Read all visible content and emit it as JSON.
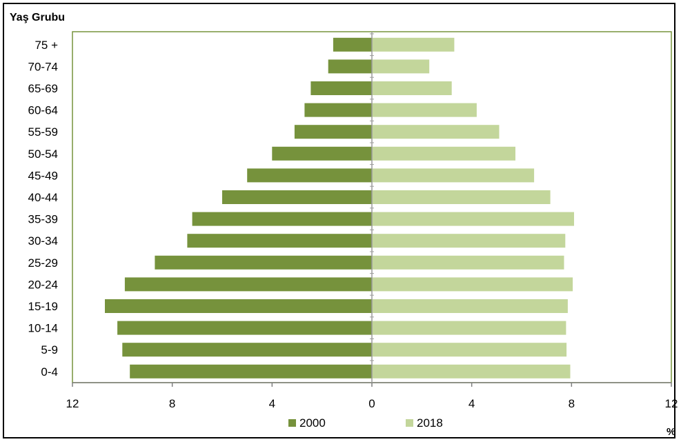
{
  "chart_data": {
    "type": "bar",
    "orientation": "horizontal-pyramid",
    "title": "Yaş Grubu",
    "unit_label": "%",
    "categories": [
      "0-4",
      "5-9",
      "10-14",
      "15-19",
      "20-24",
      "25-29",
      "30-34",
      "35-39",
      "40-44",
      "45-49",
      "50-54",
      "55-59",
      "60-64",
      "65-69",
      "70-74",
      "75 +"
    ],
    "series": [
      {
        "name": "2000",
        "side": "left",
        "color": "#76923c",
        "values": [
          9.7,
          10.0,
          10.2,
          10.7,
          9.9,
          8.7,
          7.4,
          7.2,
          6.0,
          5.0,
          4.0,
          3.1,
          2.7,
          2.45,
          1.75,
          1.55
        ]
      },
      {
        "name": "2018",
        "side": "right",
        "color": "#c3d69b",
        "values": [
          7.95,
          7.8,
          7.78,
          7.85,
          8.05,
          7.7,
          7.75,
          8.1,
          7.15,
          6.5,
          5.75,
          5.1,
          4.2,
          3.2,
          2.3,
          3.3
        ]
      }
    ],
    "xlim": [
      -12,
      12
    ],
    "xticks": [
      -12,
      -8,
      -4,
      0,
      4,
      8,
      12
    ],
    "xtick_labels": [
      "12",
      "8",
      "4",
      "0",
      "4",
      "8",
      "12"
    ],
    "grid": false,
    "legend_position": "bottom",
    "plot_border_color": "#77933c"
  }
}
